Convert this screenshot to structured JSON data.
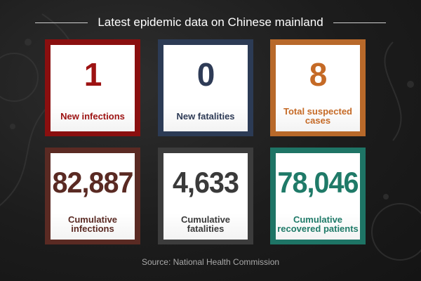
{
  "title": "Latest epidemic data on Chinese mainland",
  "cards": [
    {
      "value": "1",
      "label": "New infections",
      "color": "#9d1212"
    },
    {
      "value": "0",
      "label": "New fatalities",
      "color": "#2e3b56"
    },
    {
      "value": "8",
      "label": "Total suspected cases",
      "color": "#c56a26"
    },
    {
      "value": "82,887",
      "label": "Cumulative infections",
      "color": "#5a2a23"
    },
    {
      "value": "4,633",
      "label": "Cumulative fatalities",
      "color": "#3a3a3a"
    },
    {
      "value": "78,046",
      "label": "Cumulative recovered patients",
      "color": "#1f7a68"
    }
  ],
  "source": "Source: National Health Commission"
}
